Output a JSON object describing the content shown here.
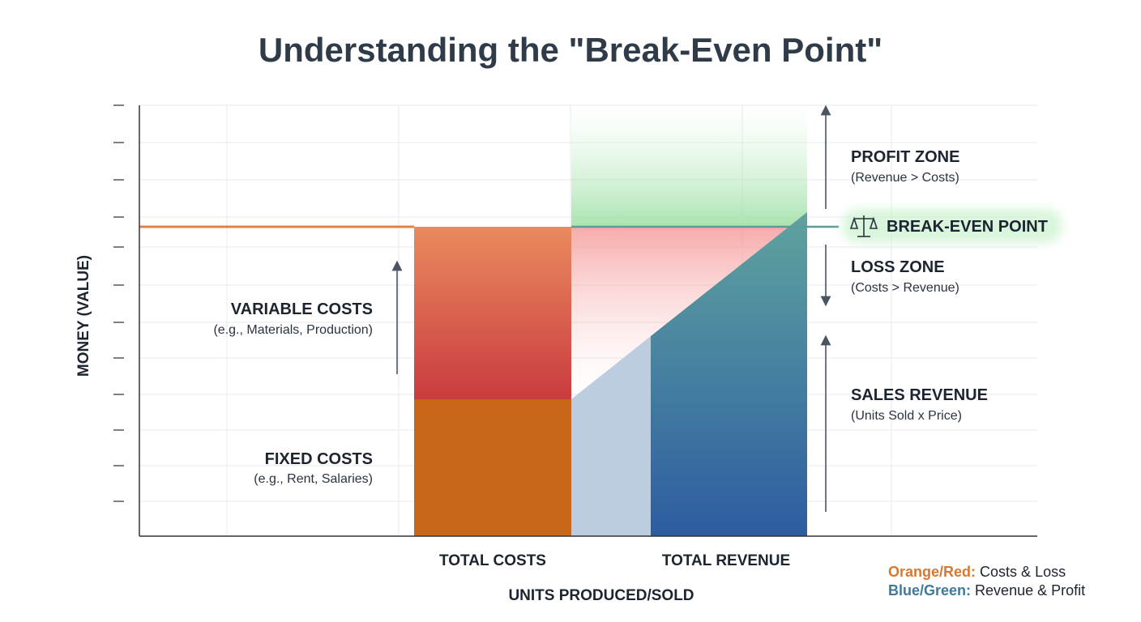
{
  "title": "Understanding the \"Break-Even Point\"",
  "axes": {
    "y_label": "MONEY (VALUE)",
    "x_label": "UNITS PRODUCED/SOLD"
  },
  "columns": [
    "TOTAL COSTS",
    "TOTAL REVENUE"
  ],
  "annotations": {
    "variable_costs": {
      "label": "VARIABLE COSTS",
      "note": "(e.g., Materials, Production)"
    },
    "fixed_costs": {
      "label": "FIXED COSTS",
      "note": "(e.g., Rent, Salaries)"
    },
    "profit_zone": {
      "label": "PROFIT ZONE",
      "note": "(Revenue > Costs)"
    },
    "break_even": {
      "label": "BREAK-EVEN POINT"
    },
    "loss_zone": {
      "label": "LOSS ZONE",
      "note": "(Costs > Revenue)"
    },
    "sales_revenue": {
      "label": "SALES REVENUE",
      "note": "(Units Sold x Price)"
    }
  },
  "legend": [
    {
      "key": "Orange/Red:",
      "text": "Costs & Loss"
    },
    {
      "key": "Blue/Green:",
      "text": "Revenue & Profit"
    }
  ]
}
